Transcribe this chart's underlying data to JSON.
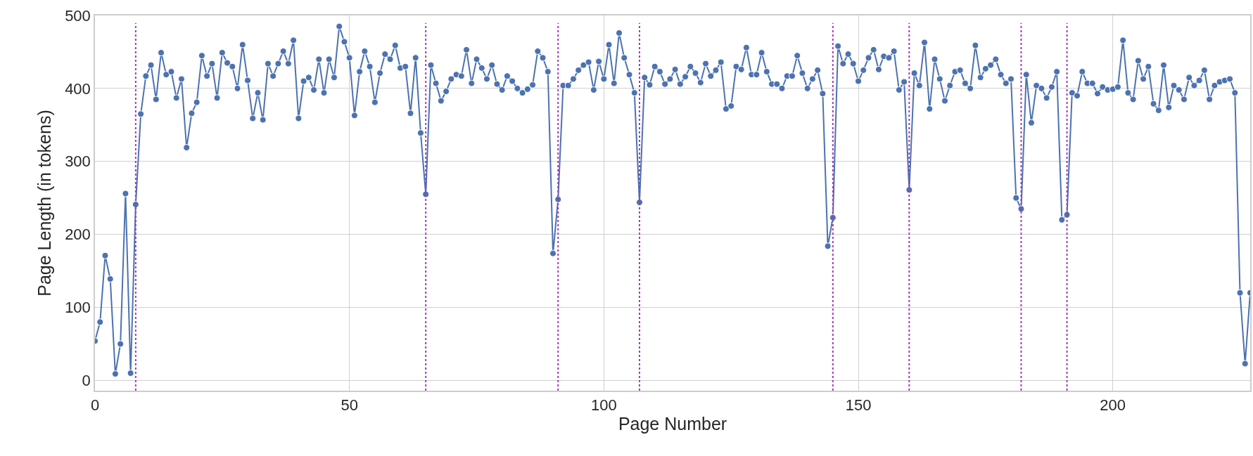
{
  "chart_data": {
    "type": "line",
    "xlabel": "Page Number",
    "ylabel": "Page Length (in tokens)",
    "x": [
      0,
      1,
      2,
      3,
      4,
      5,
      6,
      7,
      8,
      9,
      10,
      11,
      12,
      13,
      14,
      15,
      16,
      17,
      18,
      19,
      20,
      21,
      22,
      23,
      24,
      25,
      26,
      27,
      28,
      29,
      30,
      31,
      32,
      33,
      34,
      35,
      36,
      37,
      38,
      39,
      40,
      41,
      42,
      43,
      44,
      45,
      46,
      47,
      48,
      49,
      50,
      51,
      52,
      53,
      54,
      55,
      56,
      57,
      58,
      59,
      60,
      61,
      62,
      63,
      64,
      65,
      66,
      67,
      68,
      69,
      70,
      71,
      72,
      73,
      74,
      75,
      76,
      77,
      78,
      79,
      80,
      81,
      82,
      83,
      84,
      85,
      86,
      87,
      88,
      89,
      90,
      91,
      92,
      93,
      94,
      95,
      96,
      97,
      98,
      99,
      100,
      101,
      102,
      103,
      104,
      105,
      106,
      107,
      108,
      109,
      110,
      111,
      112,
      113,
      114,
      115,
      116,
      117,
      118,
      119,
      120,
      121,
      122,
      123,
      124,
      125,
      126,
      127,
      128,
      129,
      130,
      131,
      132,
      133,
      134,
      135,
      136,
      137,
      138,
      139,
      140,
      141,
      142,
      143,
      144,
      145,
      146,
      147,
      148,
      149,
      150,
      151,
      152,
      153,
      154,
      155,
      156,
      157,
      158,
      159,
      160,
      161,
      162,
      163,
      164,
      165,
      166,
      167,
      168,
      169,
      170,
      171,
      172,
      173,
      174,
      175,
      176,
      177,
      178,
      179,
      180,
      181,
      182,
      183,
      184,
      185,
      186,
      187,
      188,
      189,
      190,
      191,
      192,
      193,
      194,
      195,
      196,
      197,
      198,
      199,
      200,
      201,
      202,
      203,
      204,
      205,
      206,
      207,
      208,
      209,
      210,
      211,
      212,
      213,
      214,
      215,
      216,
      217,
      218,
      219,
      220,
      221,
      222,
      223,
      224,
      225,
      226,
      227
    ],
    "series": [
      {
        "color": "#4c72b0",
        "values": [
          54,
          80,
          171,
          139,
          9,
          50,
          256,
          10,
          241,
          365,
          417,
          432,
          385,
          449,
          419,
          423,
          387,
          413,
          319,
          366,
          381,
          445,
          417,
          434,
          387,
          449,
          435,
          430,
          400,
          460,
          411,
          359,
          394,
          357,
          434,
          417,
          434,
          451,
          434,
          466,
          359,
          410,
          415,
          398,
          440,
          394,
          440,
          415,
          485,
          464,
          442,
          363,
          423,
          451,
          430,
          381,
          421,
          447,
          440,
          459,
          428,
          430,
          366,
          442,
          339,
          255,
          432,
          407,
          383,
          396,
          413,
          419,
          417,
          453,
          407,
          440,
          428,
          413,
          432,
          406,
          398,
          417,
          410,
          400,
          394,
          399,
          405,
          451,
          442,
          423,
          174,
          248,
          404,
          404,
          413,
          425,
          432,
          436,
          398,
          437,
          413,
          460,
          407,
          476,
          442,
          419,
          394,
          244,
          415,
          405,
          430,
          423,
          406,
          413,
          426,
          406,
          416,
          430,
          421,
          408,
          434,
          417,
          425,
          436,
          372,
          376,
          430,
          426,
          456,
          419,
          419,
          449,
          423,
          406,
          406,
          400,
          417,
          417,
          445,
          421,
          400,
          413,
          425,
          393,
          184,
          223,
          458,
          434,
          447,
          434,
          410,
          425,
          442,
          453,
          426,
          444,
          442,
          451,
          398,
          409,
          261,
          421,
          404,
          463,
          372,
          440,
          413,
          383,
          404,
          423,
          425,
          407,
          400,
          459,
          415,
          427,
          432,
          440,
          419,
          407,
          413,
          250,
          235,
          419,
          353,
          404,
          400,
          387,
          402,
          423,
          220,
          227,
          394,
          390,
          423,
          407,
          407,
          393,
          402,
          398,
          399,
          402,
          466,
          394,
          385,
          438,
          413,
          430,
          379,
          370,
          432,
          374,
          404,
          398,
          385,
          415,
          404,
          411,
          425,
          385,
          404,
          409,
          411,
          413,
          394,
          120,
          23,
          120
        ]
      }
    ],
    "xlim": [
      0,
      227
    ],
    "xticks": [
      0,
      50,
      100,
      150,
      200
    ],
    "ylim": [
      -14,
      500
    ],
    "yticks": [
      0,
      100,
      200,
      300,
      400,
      500
    ],
    "grid": true,
    "marker": "circle",
    "line_style": "solid",
    "ref_lines": [
      {
        "axis": "x",
        "value": 8,
        "color": "#a03cb4",
        "line_style": "dotted"
      },
      {
        "axis": "x",
        "value": 65,
        "color": "#a03cb4",
        "line_style": "dotted"
      },
      {
        "axis": "x",
        "value": 91,
        "color": "#a03cb4",
        "line_style": "dotted"
      },
      {
        "axis": "x",
        "value": 107,
        "color": "#a03cb4",
        "line_style": "dotted"
      },
      {
        "axis": "x",
        "value": 145,
        "color": "#a03cb4",
        "line_style": "dotted"
      },
      {
        "axis": "x",
        "value": 160,
        "color": "#a03cb4",
        "line_style": "dotted"
      },
      {
        "axis": "x",
        "value": 182,
        "color": "#a03cb4",
        "line_style": "dotted"
      },
      {
        "axis": "x",
        "value": 191,
        "color": "#a03cb4",
        "line_style": "dotted"
      }
    ]
  }
}
